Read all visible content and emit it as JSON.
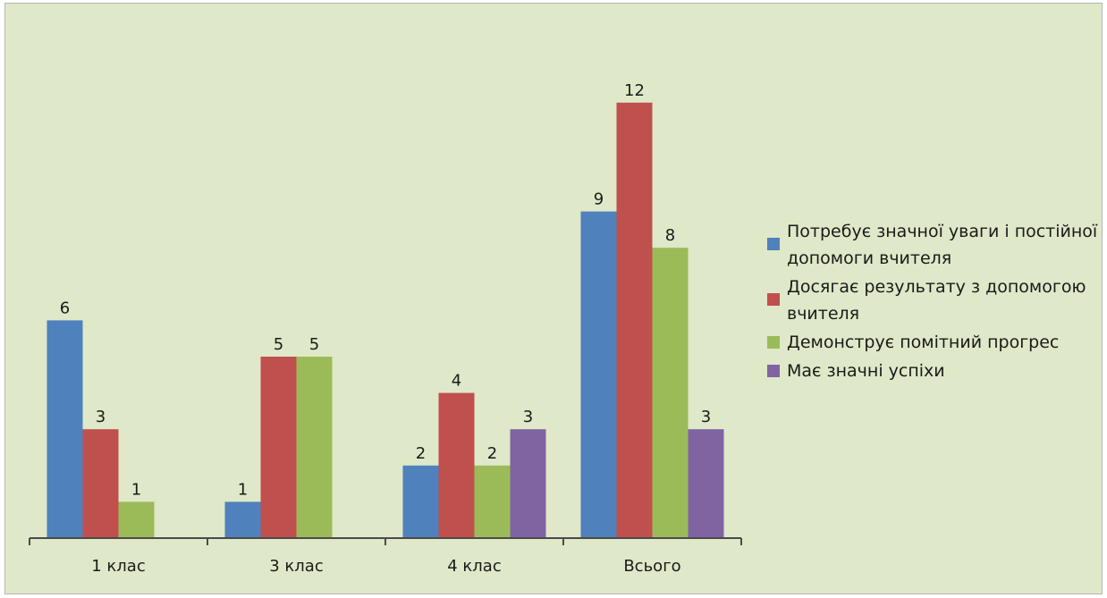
{
  "chart_data": {
    "type": "bar",
    "categories": [
      "1 клас",
      "3 клас",
      "4 клас",
      "Всього"
    ],
    "series": [
      {
        "name": "Потребує значної уваги і постійної допомоги вчителя",
        "color": "#4f81bd",
        "values": [
          6,
          1,
          2,
          9
        ]
      },
      {
        "name": "Досягає результату з допомогою вчителя",
        "color": "#c0504d",
        "values": [
          3,
          5,
          4,
          12
        ]
      },
      {
        "name": "Демонструє помітний прогрес",
        "color": "#9bbb59",
        "values": [
          1,
          5,
          2,
          8
        ]
      },
      {
        "name": "Має значні успіхи",
        "color": "#8064a2",
        "values": [
          null,
          null,
          3,
          3
        ]
      }
    ],
    "ylim": [
      0,
      12
    ],
    "legend_position": "right",
    "grid": false,
    "background": "#dfe8c8"
  }
}
